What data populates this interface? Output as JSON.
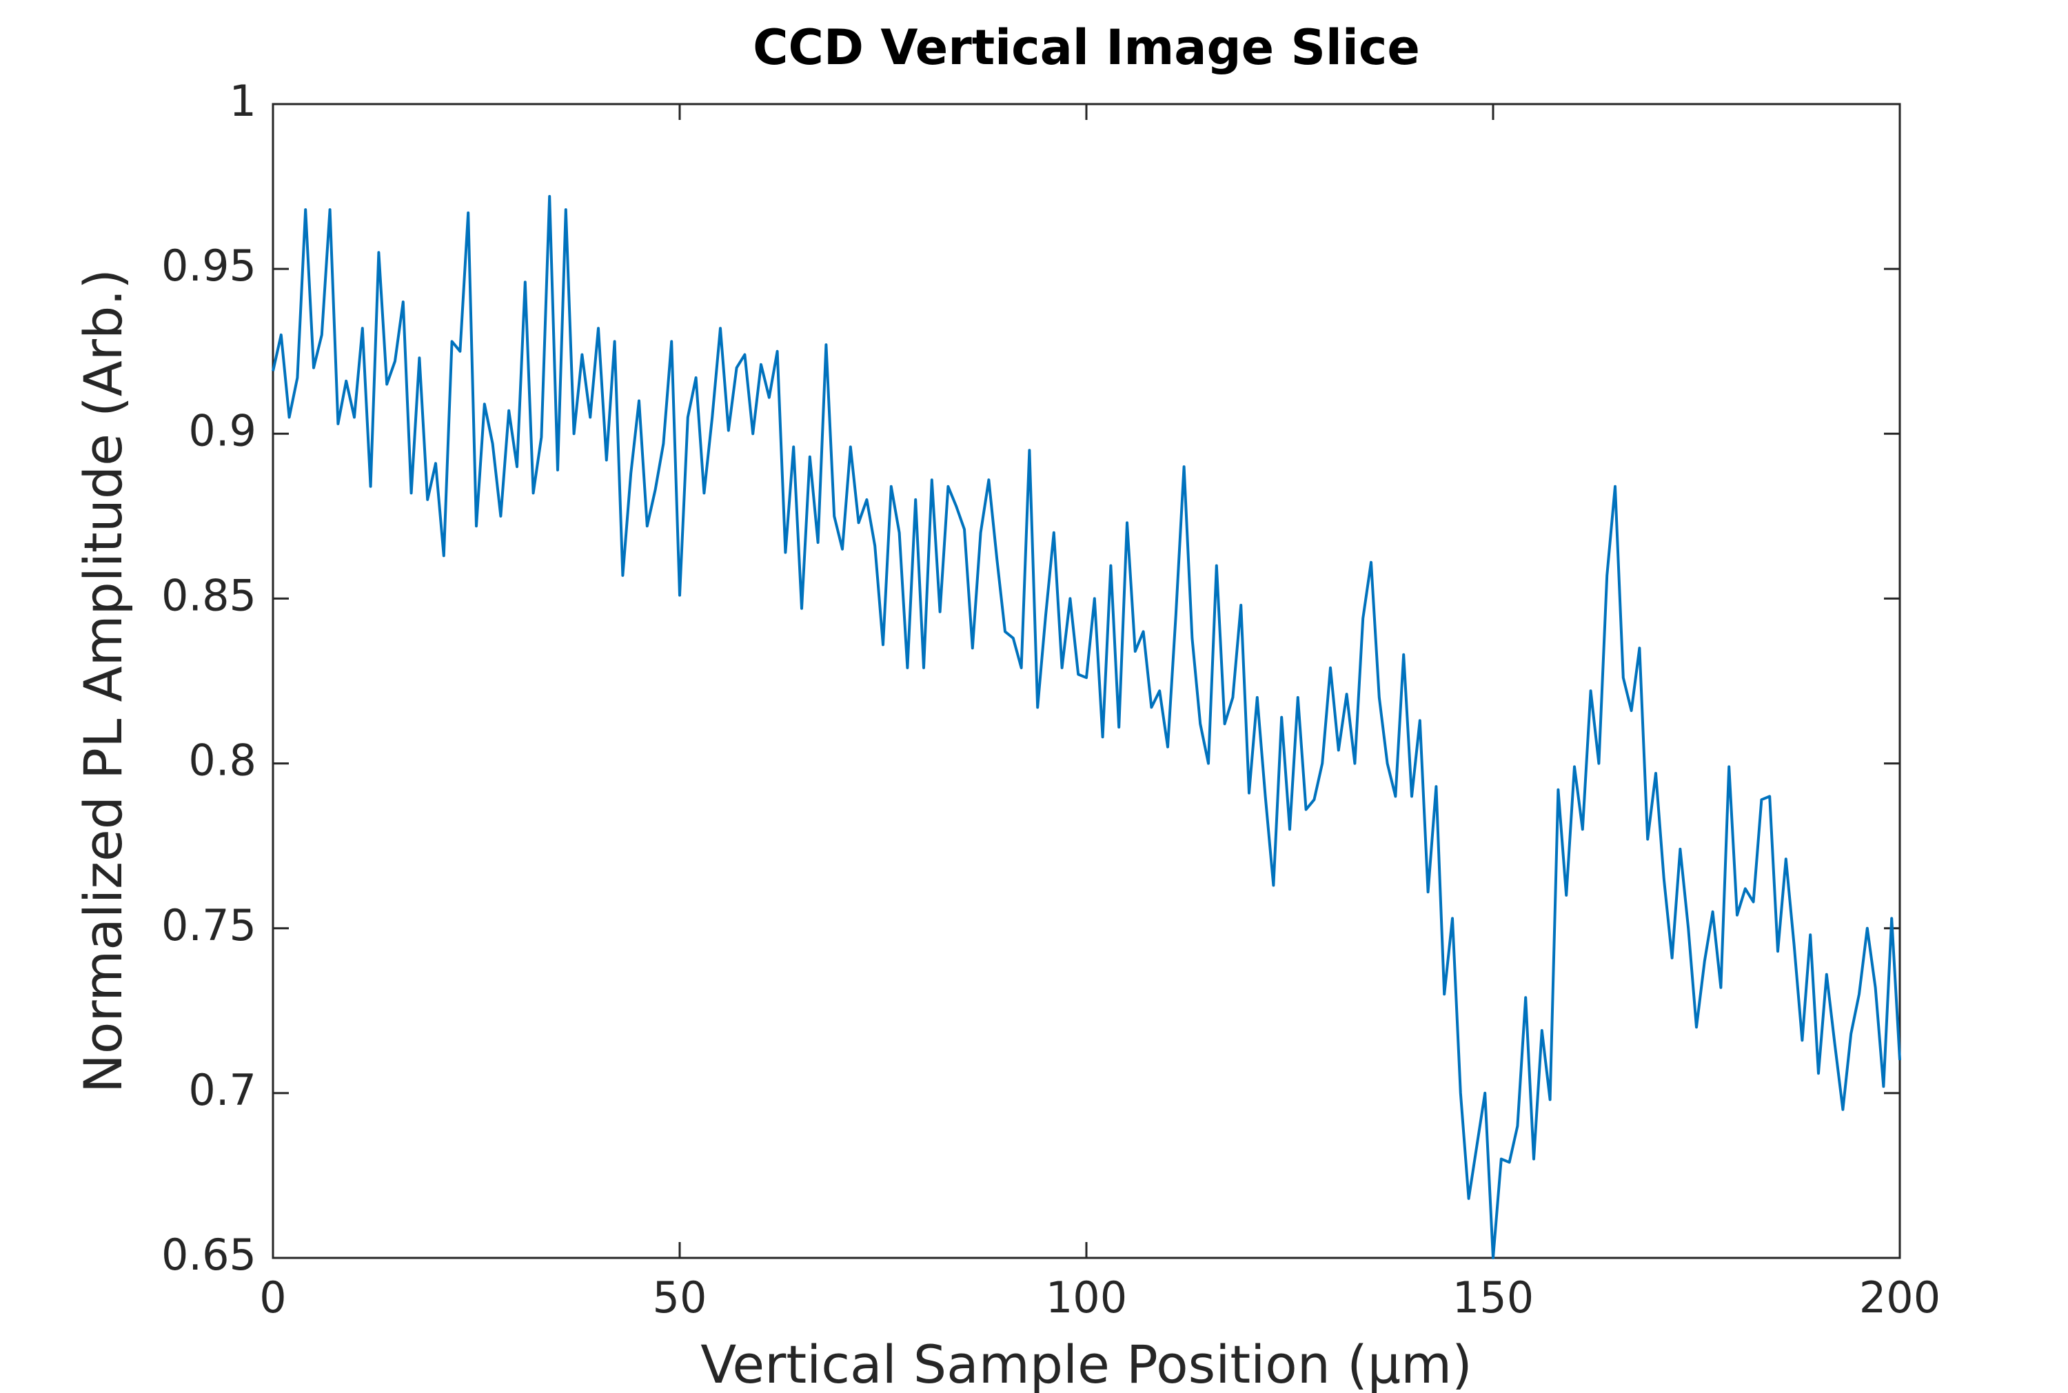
{
  "chart_data": {
    "type": "line",
    "title": "CCD Vertical Image Slice",
    "x_label": "Vertical Sample Position (µm)",
    "y_label": "Normalized PL Amplitude (Arb.)",
    "color": "#0072bd",
    "x": [
      0,
      1,
      2,
      3,
      4,
      5,
      6,
      7,
      8,
      9,
      10,
      11,
      12,
      13,
      14,
      15,
      16,
      17,
      18,
      19,
      20,
      21,
      22,
      23,
      24,
      25,
      26,
      27,
      28,
      29,
      30,
      31,
      32,
      33,
      34,
      35,
      36,
      37,
      38,
      39,
      40,
      41,
      42,
      43,
      44,
      45,
      46,
      47,
      48,
      49,
      50,
      51,
      52,
      53,
      54,
      55,
      56,
      57,
      58,
      59,
      60,
      61,
      62,
      63,
      64,
      65,
      66,
      67,
      68,
      69,
      70,
      71,
      72,
      73,
      74,
      75,
      76,
      77,
      78,
      79,
      80,
      81,
      82,
      83,
      84,
      85,
      86,
      87,
      88,
      89,
      90,
      91,
      92,
      93,
      94,
      95,
      96,
      97,
      98,
      99,
      100,
      101,
      102,
      103,
      104,
      105,
      106,
      107,
      108,
      109,
      110,
      111,
      112,
      113,
      114,
      115,
      116,
      117,
      118,
      119,
      120,
      121,
      122,
      123,
      124,
      125,
      126,
      127,
      128,
      129,
      130,
      131,
      132,
      133,
      134,
      135,
      136,
      137,
      138,
      139,
      140,
      141,
      142,
      143,
      144,
      145,
      146,
      147,
      148,
      149,
      150,
      151,
      152,
      153,
      154,
      155,
      156,
      157,
      158,
      159,
      160,
      161,
      162,
      163,
      164,
      165,
      166,
      167,
      168,
      169,
      170,
      171,
      172,
      173,
      174,
      175,
      176,
      177,
      178,
      179,
      180,
      181,
      182,
      183,
      184,
      185,
      186,
      187,
      188,
      189,
      190,
      191,
      192,
      193,
      194,
      195,
      196,
      197,
      198,
      199,
      200
    ],
    "values": [
      0.919,
      0.93,
      0.905,
      0.917,
      0.968,
      0.92,
      0.93,
      0.968,
      0.903,
      0.916,
      0.905,
      0.932,
      0.884,
      0.955,
      0.915,
      0.922,
      0.94,
      0.882,
      0.923,
      0.88,
      0.891,
      0.863,
      0.928,
      0.925,
      0.967,
      0.872,
      0.909,
      0.897,
      0.875,
      0.907,
      0.89,
      0.946,
      0.882,
      0.899,
      0.972,
      0.889,
      0.968,
      0.9,
      0.924,
      0.905,
      0.932,
      0.892,
      0.928,
      0.857,
      0.888,
      0.91,
      0.872,
      0.883,
      0.897,
      0.928,
      0.851,
      0.905,
      0.917,
      0.882,
      0.905,
      0.932,
      0.901,
      0.92,
      0.924,
      0.9,
      0.921,
      0.911,
      0.925,
      0.864,
      0.896,
      0.847,
      0.893,
      0.867,
      0.927,
      0.875,
      0.865,
      0.896,
      0.873,
      0.88,
      0.866,
      0.836,
      0.884,
      0.87,
      0.829,
      0.88,
      0.829,
      0.886,
      0.846,
      0.884,
      0.878,
      0.871,
      0.835,
      0.87,
      0.886,
      0.862,
      0.84,
      0.838,
      0.829,
      0.895,
      0.817,
      0.845,
      0.87,
      0.829,
      0.85,
      0.827,
      0.826,
      0.85,
      0.808,
      0.86,
      0.811,
      0.873,
      0.834,
      0.84,
      0.817,
      0.822,
      0.805,
      0.845,
      0.89,
      0.838,
      0.812,
      0.8,
      0.86,
      0.812,
      0.82,
      0.848,
      0.791,
      0.82,
      0.79,
      0.763,
      0.814,
      0.78,
      0.82,
      0.786,
      0.789,
      0.8,
      0.829,
      0.804,
      0.821,
      0.8,
      0.844,
      0.861,
      0.82,
      0.8,
      0.79,
      0.833,
      0.79,
      0.813,
      0.761,
      0.793,
      0.73,
      0.753,
      0.7,
      0.668,
      0.684,
      0.7,
      0.65,
      0.68,
      0.679,
      0.69,
      0.729,
      0.68,
      0.719,
      0.698,
      0.792,
      0.76,
      0.799,
      0.78,
      0.822,
      0.8,
      0.857,
      0.884,
      0.826,
      0.816,
      0.835,
      0.777,
      0.797,
      0.765,
      0.741,
      0.774,
      0.75,
      0.72,
      0.74,
      0.755,
      0.732,
      0.799,
      0.754,
      0.762,
      0.758,
      0.789,
      0.79,
      0.743,
      0.771,
      0.745,
      0.716,
      0.748,
      0.706,
      0.736,
      0.715,
      0.695,
      0.718,
      0.73,
      0.75,
      0.732,
      0.702,
      0.753,
      0.71
    ],
    "xlim": [
      0,
      200
    ],
    "xticks": [
      0,
      50,
      100,
      150,
      200
    ],
    "ylim": [
      0.65,
      1
    ],
    "yticks": [
      0.65,
      0.7,
      0.75,
      0.8,
      0.85,
      0.9,
      0.95,
      1
    ]
  }
}
